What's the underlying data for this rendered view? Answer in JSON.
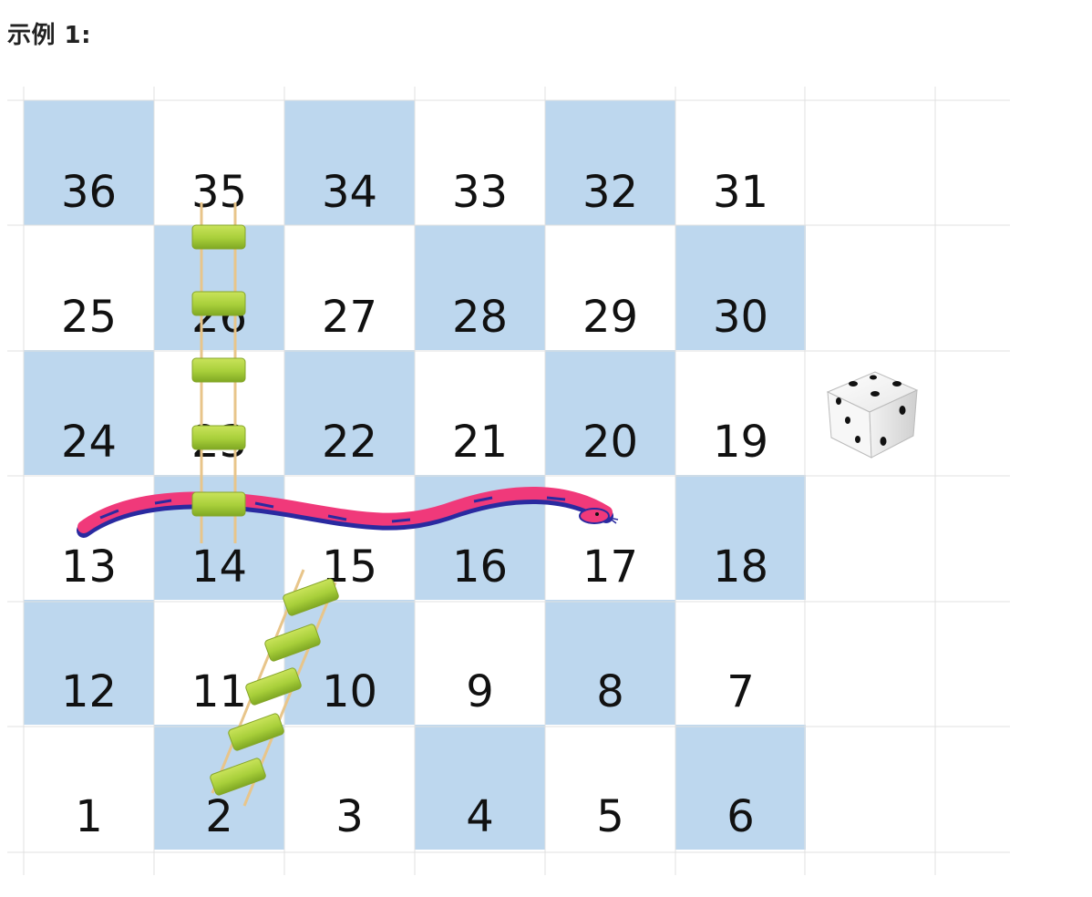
{
  "heading": "示例 1:",
  "board": {
    "size": 6,
    "rows_top_to_bottom": [
      [
        "36",
        "35",
        "34",
        "33",
        "32",
        "31"
      ],
      [
        "25",
        "26",
        "27",
        "28",
        "29",
        "30"
      ],
      [
        "24",
        "23",
        "22",
        "21",
        "20",
        "19"
      ],
      [
        "13",
        "14",
        "15",
        "16",
        "17",
        "18"
      ],
      [
        "12",
        "11",
        "10",
        "9",
        "8",
        "7"
      ],
      [
        "1",
        "2",
        "3",
        "4",
        "5",
        "6"
      ]
    ],
    "colors": {
      "shaded_cell": "#bdd7ee",
      "plain_cell": "#ffffff",
      "grid_line": "#e0e0e0"
    }
  },
  "ladders": [
    {
      "from": "14",
      "to": "35"
    },
    {
      "from": "2",
      "to": "15"
    }
  ],
  "snakes": [
    {
      "head": "17",
      "tail": "13"
    }
  ],
  "dice": {
    "icon": "dice-icon",
    "face": 5
  },
  "colors": {
    "ladder_rail": "#e8c58a",
    "ladder_rung": "#a8cf3a",
    "snake_body": "#f0397a",
    "snake_belly": "#2a2aa0"
  }
}
